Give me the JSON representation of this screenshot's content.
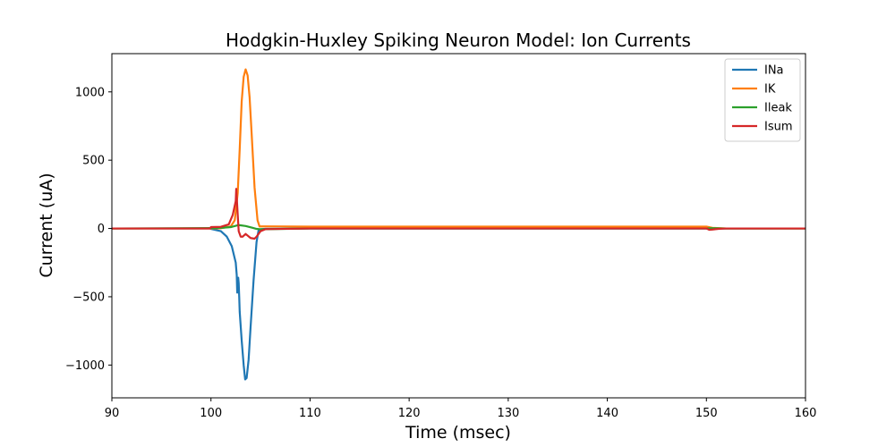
{
  "chart_data": {
    "type": "line",
    "title": "Hodgkin-Huxley Spiking Neuron Model: Ion Currents",
    "xlabel": "Time (msec)",
    "ylabel": "Current (uA)",
    "xlim": [
      90,
      160
    ],
    "ylim": [
      -1240,
      1280
    ],
    "xticks": [
      90,
      100,
      110,
      120,
      130,
      140,
      150,
      160
    ],
    "yticks": [
      -1000,
      -500,
      0,
      500,
      1000
    ],
    "legend_position": "top-right",
    "grid": false,
    "series": [
      {
        "name": "INa",
        "color": "#1f77b4",
        "x": [
          90,
          99.9,
          100,
          101,
          101.6,
          102.1,
          102.5,
          102.6,
          102.65,
          102.7,
          102.75,
          102.8,
          102.85,
          102.9,
          103.1,
          103.3,
          103.45,
          103.6,
          103.8,
          104.0,
          104.3,
          104.6,
          104.8,
          105.0,
          105.5,
          107,
          110,
          160
        ],
        "y": [
          0,
          0,
          -3,
          -20,
          -60,
          -130,
          -250,
          -340,
          -470,
          -380,
          -360,
          -400,
          -500,
          -610,
          -820,
          -1000,
          -1105,
          -1095,
          -960,
          -720,
          -380,
          -100,
          -15,
          -5,
          -3,
          -2,
          -1,
          0
        ]
      },
      {
        "name": "IK",
        "color": "#ff7f0e",
        "x": [
          90,
          100,
          101,
          102,
          102.4,
          102.7,
          102.9,
          103.1,
          103.3,
          103.5,
          103.7,
          103.9,
          104.1,
          104.4,
          104.7,
          104.9,
          105.0,
          105.5,
          110,
          150,
          150.6,
          152,
          160
        ],
        "y": [
          0,
          0,
          2,
          15,
          60,
          260,
          580,
          930,
          1110,
          1165,
          1120,
          960,
          700,
          300,
          60,
          15,
          15,
          15,
          14,
          14,
          5,
          0,
          0
        ]
      },
      {
        "name": "Ileak",
        "color": "#2ca02c",
        "x": [
          90,
          100,
          101,
          102,
          102.8,
          103.5,
          104.2,
          104.6,
          105,
          106,
          108,
          110,
          150,
          150.5,
          152,
          160
        ],
        "y": [
          0,
          3,
          4,
          10,
          25,
          18,
          5,
          -3,
          -6,
          -5,
          -2,
          0,
          0,
          2,
          0,
          0
        ]
      },
      {
        "name": "Isum",
        "color": "#d62728",
        "x": [
          90,
          99.9,
          100,
          101,
          101.8,
          102.2,
          102.5,
          102.55,
          102.6,
          102.7,
          102.8,
          103.0,
          103.2,
          103.5,
          104.0,
          104.4,
          104.6,
          104.8,
          105.0,
          105.5,
          110,
          150,
          150.3,
          150.6,
          151.2,
          152,
          160
        ],
        "y": [
          0,
          0,
          10,
          12,
          30,
          100,
          200,
          290,
          230,
          100,
          -20,
          -60,
          -60,
          -40,
          -70,
          -75,
          -60,
          -40,
          -20,
          -5,
          0,
          0,
          -10,
          -8,
          -3,
          0,
          0
        ]
      }
    ]
  }
}
